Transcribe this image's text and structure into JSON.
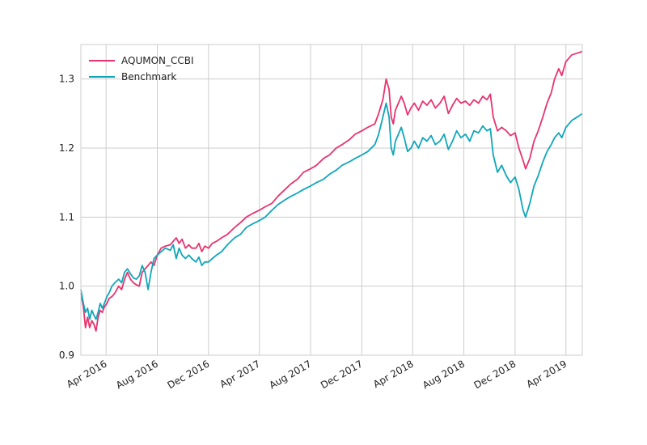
{
  "chart_data": {
    "type": "line",
    "title": "",
    "xlabel": "",
    "ylabel": "",
    "x_range": [
      "2016-02-01",
      "2019-05-10"
    ],
    "ylim": [
      0.9,
      1.35
    ],
    "grid": true,
    "legend_position": "top-left",
    "x_ticks": [
      {
        "date": "2016-04-01",
        "label": "Apr 2016"
      },
      {
        "date": "2016-08-01",
        "label": "Aug 2016"
      },
      {
        "date": "2016-12-01",
        "label": "Dec 2016"
      },
      {
        "date": "2017-04-01",
        "label": "Apr 2017"
      },
      {
        "date": "2017-08-01",
        "label": "Aug 2017"
      },
      {
        "date": "2017-12-01",
        "label": "Dec 2017"
      },
      {
        "date": "2018-04-01",
        "label": "Apr 2018"
      },
      {
        "date": "2018-08-01",
        "label": "Aug 2018"
      },
      {
        "date": "2018-12-01",
        "label": "Dec 2018"
      },
      {
        "date": "2019-04-01",
        "label": "Apr 2019"
      }
    ],
    "y_ticks": [
      {
        "value": 0.9,
        "label": "0.9"
      },
      {
        "value": 1.0,
        "label": "1.0"
      },
      {
        "value": 1.1,
        "label": "1.1"
      },
      {
        "value": 1.2,
        "label": "1.2"
      },
      {
        "value": 1.3,
        "label": "1.3"
      }
    ],
    "series": [
      {
        "name": "AQUMON_CCBI",
        "color": "#e8336e",
        "points": [
          [
            "2016-02-01",
            0.99
          ],
          [
            "2016-02-07",
            0.97
          ],
          [
            "2016-02-12",
            0.94
          ],
          [
            "2016-02-17",
            0.955
          ],
          [
            "2016-02-22",
            0.94
          ],
          [
            "2016-02-27",
            0.95
          ],
          [
            "2016-03-03",
            0.945
          ],
          [
            "2016-03-08",
            0.935
          ],
          [
            "2016-03-13",
            0.955
          ],
          [
            "2016-03-18",
            0.965
          ],
          [
            "2016-03-23",
            0.962
          ],
          [
            "2016-03-28",
            0.97
          ],
          [
            "2016-04-03",
            0.975
          ],
          [
            "2016-04-08",
            0.982
          ],
          [
            "2016-04-15",
            0.985
          ],
          [
            "2016-04-22",
            0.99
          ],
          [
            "2016-05-01",
            1.0
          ],
          [
            "2016-05-08",
            0.995
          ],
          [
            "2016-05-15",
            1.01
          ],
          [
            "2016-05-22",
            1.02
          ],
          [
            "2016-05-29",
            1.01
          ],
          [
            "2016-06-05",
            1.005
          ],
          [
            "2016-06-12",
            1.002
          ],
          [
            "2016-06-19",
            1.0
          ],
          [
            "2016-06-26",
            1.02
          ],
          [
            "2016-07-03",
            1.025
          ],
          [
            "2016-07-10",
            1.03
          ],
          [
            "2016-07-17",
            1.035
          ],
          [
            "2016-07-24",
            1.03
          ],
          [
            "2016-08-01",
            1.045
          ],
          [
            "2016-08-10",
            1.055
          ],
          [
            "2016-08-20",
            1.058
          ],
          [
            "2016-09-01",
            1.06
          ],
          [
            "2016-09-08",
            1.065
          ],
          [
            "2016-09-15",
            1.07
          ],
          [
            "2016-09-22",
            1.062
          ],
          [
            "2016-09-29",
            1.068
          ],
          [
            "2016-10-07",
            1.055
          ],
          [
            "2016-10-15",
            1.06
          ],
          [
            "2016-10-22",
            1.055
          ],
          [
            "2016-11-01",
            1.055
          ],
          [
            "2016-11-08",
            1.062
          ],
          [
            "2016-11-15",
            1.05
          ],
          [
            "2016-11-22",
            1.058
          ],
          [
            "2016-12-01",
            1.055
          ],
          [
            "2016-12-10",
            1.062
          ],
          [
            "2016-12-20",
            1.065
          ],
          [
            "2017-01-01",
            1.07
          ],
          [
            "2017-01-15",
            1.075
          ],
          [
            "2017-02-01",
            1.085
          ],
          [
            "2017-02-15",
            1.092
          ],
          [
            "2017-03-01",
            1.1
          ],
          [
            "2017-03-15",
            1.105
          ],
          [
            "2017-04-01",
            1.11
          ],
          [
            "2017-04-15",
            1.115
          ],
          [
            "2017-05-01",
            1.12
          ],
          [
            "2017-05-15",
            1.13
          ],
          [
            "2017-06-01",
            1.14
          ],
          [
            "2017-06-15",
            1.148
          ],
          [
            "2017-07-01",
            1.155
          ],
          [
            "2017-07-15",
            1.165
          ],
          [
            "2017-08-01",
            1.17
          ],
          [
            "2017-08-15",
            1.175
          ],
          [
            "2017-09-01",
            1.185
          ],
          [
            "2017-09-15",
            1.19
          ],
          [
            "2017-10-01",
            1.2
          ],
          [
            "2017-10-15",
            1.205
          ],
          [
            "2017-11-01",
            1.212
          ],
          [
            "2017-11-15",
            1.22
          ],
          [
            "2017-12-01",
            1.225
          ],
          [
            "2017-12-15",
            1.23
          ],
          [
            "2018-01-01",
            1.235
          ],
          [
            "2018-01-10",
            1.25
          ],
          [
            "2018-01-20",
            1.27
          ],
          [
            "2018-01-28",
            1.3
          ],
          [
            "2018-02-04",
            1.285
          ],
          [
            "2018-02-09",
            1.245
          ],
          [
            "2018-02-14",
            1.235
          ],
          [
            "2018-02-19",
            1.255
          ],
          [
            "2018-02-26",
            1.265
          ],
          [
            "2018-03-05",
            1.275
          ],
          [
            "2018-03-12",
            1.265
          ],
          [
            "2018-03-20",
            1.248
          ],
          [
            "2018-03-28",
            1.258
          ],
          [
            "2018-04-05",
            1.265
          ],
          [
            "2018-04-15",
            1.255
          ],
          [
            "2018-04-25",
            1.268
          ],
          [
            "2018-05-05",
            1.262
          ],
          [
            "2018-05-15",
            1.27
          ],
          [
            "2018-05-25",
            1.258
          ],
          [
            "2018-06-05",
            1.265
          ],
          [
            "2018-06-15",
            1.275
          ],
          [
            "2018-06-25",
            1.25
          ],
          [
            "2018-07-05",
            1.262
          ],
          [
            "2018-07-15",
            1.272
          ],
          [
            "2018-07-25",
            1.265
          ],
          [
            "2018-08-05",
            1.268
          ],
          [
            "2018-08-15",
            1.262
          ],
          [
            "2018-08-25",
            1.27
          ],
          [
            "2018-09-05",
            1.265
          ],
          [
            "2018-09-15",
            1.275
          ],
          [
            "2018-09-25",
            1.27
          ],
          [
            "2018-10-03",
            1.278
          ],
          [
            "2018-10-10",
            1.245
          ],
          [
            "2018-10-20",
            1.225
          ],
          [
            "2018-10-30",
            1.23
          ],
          [
            "2018-11-10",
            1.225
          ],
          [
            "2018-11-20",
            1.218
          ],
          [
            "2018-12-01",
            1.222
          ],
          [
            "2018-12-10",
            1.2
          ],
          [
            "2018-12-20",
            1.182
          ],
          [
            "2018-12-26",
            1.17
          ],
          [
            "2019-01-05",
            1.185
          ],
          [
            "2019-01-15",
            1.21
          ],
          [
            "2019-01-25",
            1.225
          ],
          [
            "2019-02-05",
            1.245
          ],
          [
            "2019-02-15",
            1.265
          ],
          [
            "2019-02-25",
            1.28
          ],
          [
            "2019-03-05",
            1.3
          ],
          [
            "2019-03-15",
            1.315
          ],
          [
            "2019-03-22",
            1.305
          ],
          [
            "2019-04-01",
            1.325
          ],
          [
            "2019-04-15",
            1.335
          ],
          [
            "2019-05-01",
            1.338
          ],
          [
            "2019-05-10",
            1.34
          ]
        ]
      },
      {
        "name": "Benchmark",
        "color": "#10a6b9",
        "points": [
          [
            "2016-02-01",
            0.995
          ],
          [
            "2016-02-07",
            0.975
          ],
          [
            "2016-02-12",
            0.962
          ],
          [
            "2016-02-17",
            0.968
          ],
          [
            "2016-02-22",
            0.952
          ],
          [
            "2016-02-27",
            0.965
          ],
          [
            "2016-03-03",
            0.958
          ],
          [
            "2016-03-08",
            0.952
          ],
          [
            "2016-03-13",
            0.962
          ],
          [
            "2016-03-18",
            0.975
          ],
          [
            "2016-03-23",
            0.968
          ],
          [
            "2016-03-28",
            0.975
          ],
          [
            "2016-04-03",
            0.985
          ],
          [
            "2016-04-08",
            0.99
          ],
          [
            "2016-04-15",
            1.0
          ],
          [
            "2016-04-22",
            1.005
          ],
          [
            "2016-05-01",
            1.01
          ],
          [
            "2016-05-08",
            1.005
          ],
          [
            "2016-05-15",
            1.02
          ],
          [
            "2016-05-22",
            1.025
          ],
          [
            "2016-05-29",
            1.018
          ],
          [
            "2016-06-05",
            1.012
          ],
          [
            "2016-06-12",
            1.01
          ],
          [
            "2016-06-19",
            1.015
          ],
          [
            "2016-06-26",
            1.03
          ],
          [
            "2016-07-03",
            1.02
          ],
          [
            "2016-07-10",
            0.995
          ],
          [
            "2016-07-17",
            1.02
          ],
          [
            "2016-07-24",
            1.04
          ],
          [
            "2016-08-01",
            1.045
          ],
          [
            "2016-08-10",
            1.05
          ],
          [
            "2016-08-20",
            1.055
          ],
          [
            "2016-09-01",
            1.052
          ],
          [
            "2016-09-08",
            1.06
          ],
          [
            "2016-09-15",
            1.04
          ],
          [
            "2016-09-22",
            1.055
          ],
          [
            "2016-09-29",
            1.045
          ],
          [
            "2016-10-07",
            1.04
          ],
          [
            "2016-10-15",
            1.045
          ],
          [
            "2016-10-22",
            1.04
          ],
          [
            "2016-11-01",
            1.035
          ],
          [
            "2016-11-08",
            1.042
          ],
          [
            "2016-11-15",
            1.03
          ],
          [
            "2016-11-22",
            1.035
          ],
          [
            "2016-12-01",
            1.035
          ],
          [
            "2016-12-10",
            1.04
          ],
          [
            "2016-12-20",
            1.045
          ],
          [
            "2017-01-01",
            1.05
          ],
          [
            "2017-01-15",
            1.06
          ],
          [
            "2017-02-01",
            1.07
          ],
          [
            "2017-02-15",
            1.075
          ],
          [
            "2017-03-01",
            1.085
          ],
          [
            "2017-03-15",
            1.09
          ],
          [
            "2017-04-01",
            1.095
          ],
          [
            "2017-04-15",
            1.1
          ],
          [
            "2017-05-01",
            1.11
          ],
          [
            "2017-05-15",
            1.118
          ],
          [
            "2017-06-01",
            1.125
          ],
          [
            "2017-06-15",
            1.13
          ],
          [
            "2017-07-01",
            1.135
          ],
          [
            "2017-07-15",
            1.14
          ],
          [
            "2017-08-01",
            1.145
          ],
          [
            "2017-08-15",
            1.15
          ],
          [
            "2017-09-01",
            1.155
          ],
          [
            "2017-09-15",
            1.162
          ],
          [
            "2017-10-01",
            1.168
          ],
          [
            "2017-10-15",
            1.175
          ],
          [
            "2017-11-01",
            1.18
          ],
          [
            "2017-11-15",
            1.185
          ],
          [
            "2017-12-01",
            1.19
          ],
          [
            "2017-12-15",
            1.195
          ],
          [
            "2018-01-01",
            1.205
          ],
          [
            "2018-01-10",
            1.22
          ],
          [
            "2018-01-20",
            1.245
          ],
          [
            "2018-01-28",
            1.265
          ],
          [
            "2018-02-04",
            1.245
          ],
          [
            "2018-02-09",
            1.2
          ],
          [
            "2018-02-14",
            1.19
          ],
          [
            "2018-02-19",
            1.21
          ],
          [
            "2018-02-26",
            1.22
          ],
          [
            "2018-03-05",
            1.23
          ],
          [
            "2018-03-12",
            1.215
          ],
          [
            "2018-03-20",
            1.195
          ],
          [
            "2018-03-28",
            1.2
          ],
          [
            "2018-04-05",
            1.21
          ],
          [
            "2018-04-15",
            1.2
          ],
          [
            "2018-04-25",
            1.215
          ],
          [
            "2018-05-05",
            1.21
          ],
          [
            "2018-05-15",
            1.218
          ],
          [
            "2018-05-25",
            1.205
          ],
          [
            "2018-06-05",
            1.21
          ],
          [
            "2018-06-15",
            1.22
          ],
          [
            "2018-06-25",
            1.198
          ],
          [
            "2018-07-05",
            1.21
          ],
          [
            "2018-07-15",
            1.225
          ],
          [
            "2018-07-25",
            1.215
          ],
          [
            "2018-08-05",
            1.22
          ],
          [
            "2018-08-15",
            1.21
          ],
          [
            "2018-08-25",
            1.225
          ],
          [
            "2018-09-05",
            1.222
          ],
          [
            "2018-09-15",
            1.232
          ],
          [
            "2018-09-25",
            1.225
          ],
          [
            "2018-10-03",
            1.228
          ],
          [
            "2018-10-10",
            1.19
          ],
          [
            "2018-10-20",
            1.165
          ],
          [
            "2018-10-30",
            1.175
          ],
          [
            "2018-11-10",
            1.16
          ],
          [
            "2018-11-20",
            1.15
          ],
          [
            "2018-12-01",
            1.158
          ],
          [
            "2018-12-10",
            1.14
          ],
          [
            "2018-12-20",
            1.11
          ],
          [
            "2018-12-26",
            1.1
          ],
          [
            "2019-01-05",
            1.12
          ],
          [
            "2019-01-15",
            1.145
          ],
          [
            "2019-01-25",
            1.16
          ],
          [
            "2019-02-05",
            1.18
          ],
          [
            "2019-02-15",
            1.195
          ],
          [
            "2019-02-25",
            1.205
          ],
          [
            "2019-03-05",
            1.215
          ],
          [
            "2019-03-15",
            1.222
          ],
          [
            "2019-03-22",
            1.215
          ],
          [
            "2019-04-01",
            1.23
          ],
          [
            "2019-04-15",
            1.24
          ],
          [
            "2019-05-01",
            1.246
          ],
          [
            "2019-05-10",
            1.25
          ]
        ]
      }
    ]
  }
}
